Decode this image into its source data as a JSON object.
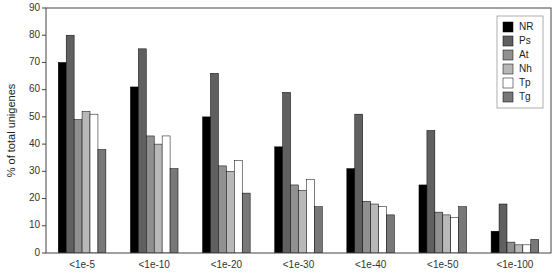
{
  "chart_data": {
    "type": "bar",
    "categories": [
      "<1e-5",
      "<1e-10",
      "<1e-20",
      "<1e-30",
      "<1e-40",
      "<1e-50",
      "<1e-100"
    ],
    "series": [
      {
        "name": "NR",
        "color": "#000000",
        "values": [
          70,
          61,
          50,
          39,
          31,
          25,
          8
        ]
      },
      {
        "name": "Ps",
        "color": "#606060",
        "values": [
          80,
          75,
          66,
          59,
          51,
          45,
          18
        ]
      },
      {
        "name": "At",
        "color": "#909090",
        "values": [
          49,
          43,
          32,
          25,
          19,
          15,
          4
        ]
      },
      {
        "name": "Nh",
        "color": "#b8b8b8",
        "values": [
          52,
          40,
          30,
          23,
          18,
          14,
          3
        ]
      },
      {
        "name": "Tp",
        "color": "#ffffff",
        "values": [
          51,
          43,
          34,
          27,
          17,
          13,
          3
        ]
      },
      {
        "name": "Tg",
        "color": "#787878",
        "values": [
          38,
          31,
          22,
          17,
          14,
          17,
          5
        ]
      }
    ],
    "ylabel": "% of total unigenes",
    "ylim": [
      0,
      90
    ],
    "yticks": [
      0,
      10,
      20,
      30,
      40,
      50,
      60,
      70,
      80,
      90
    ],
    "legend": "upper right",
    "grid": false
  }
}
